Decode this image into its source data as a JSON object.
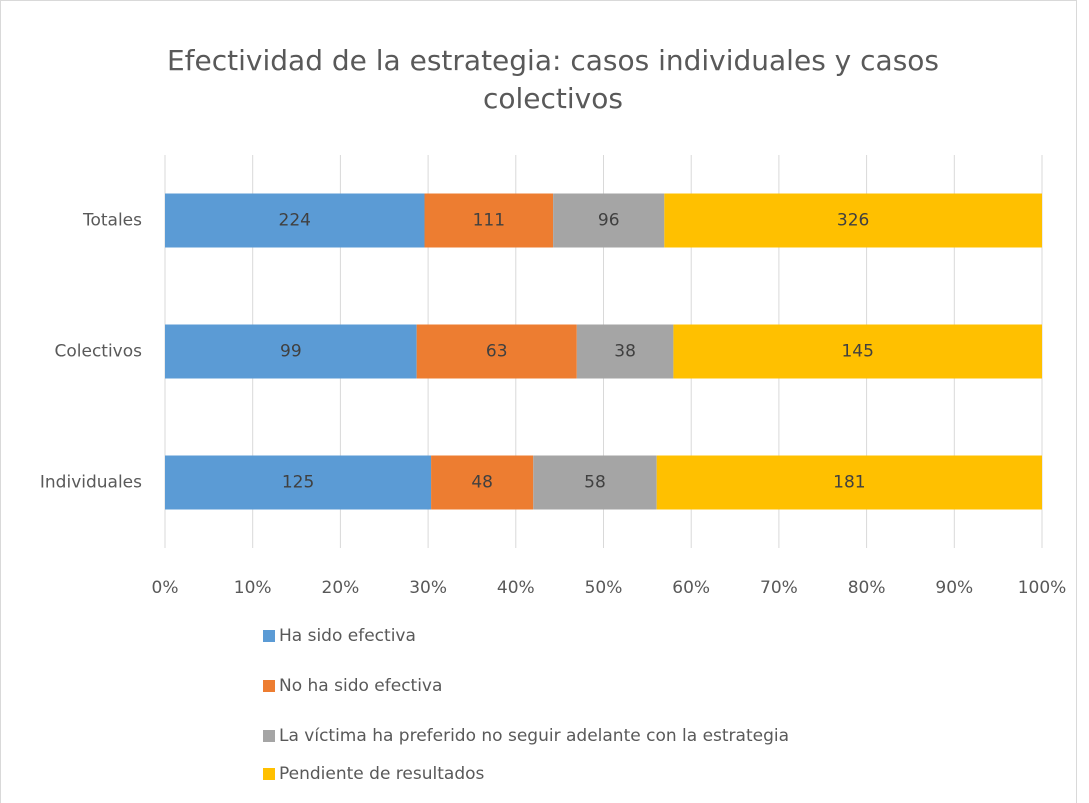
{
  "chart_data": {
    "type": "bar100",
    "orientation": "horizontal",
    "title": "Efectividad de la estrategia: casos individuales y casos colectivos",
    "categories": [
      "Totales",
      "Colectivos",
      "Individuales"
    ],
    "series": [
      {
        "name": "Ha sido efectiva",
        "color": "#5b9bd5",
        "values": [
          224,
          99,
          125
        ]
      },
      {
        "name": "No ha sido efectiva",
        "color": "#ed7d31",
        "values": [
          111,
          63,
          48
        ]
      },
      {
        "name": "La víctima ha preferido no seguir adelante con la estrategia",
        "color": "#a5a5a5",
        "values": [
          96,
          38,
          58
        ]
      },
      {
        "name": "Pendiente de resultados",
        "color": "#ffc000",
        "values": [
          326,
          145,
          181
        ]
      }
    ],
    "xlim": [
      0,
      100
    ],
    "xticks": [
      {
        "value": 0,
        "label": "0%"
      },
      {
        "value": 10,
        "label": "10%"
      },
      {
        "value": 20,
        "label": "20%"
      },
      {
        "value": 30,
        "label": "30%"
      },
      {
        "value": 40,
        "label": "40%"
      },
      {
        "value": 50,
        "label": "50%"
      },
      {
        "value": 60,
        "label": "60%"
      },
      {
        "value": 70,
        "label": "70%"
      },
      {
        "value": 80,
        "label": "80%"
      },
      {
        "value": 90,
        "label": "90%"
      },
      {
        "value": 100,
        "label": "100%"
      }
    ],
    "grid": true,
    "legend": "bottom"
  }
}
